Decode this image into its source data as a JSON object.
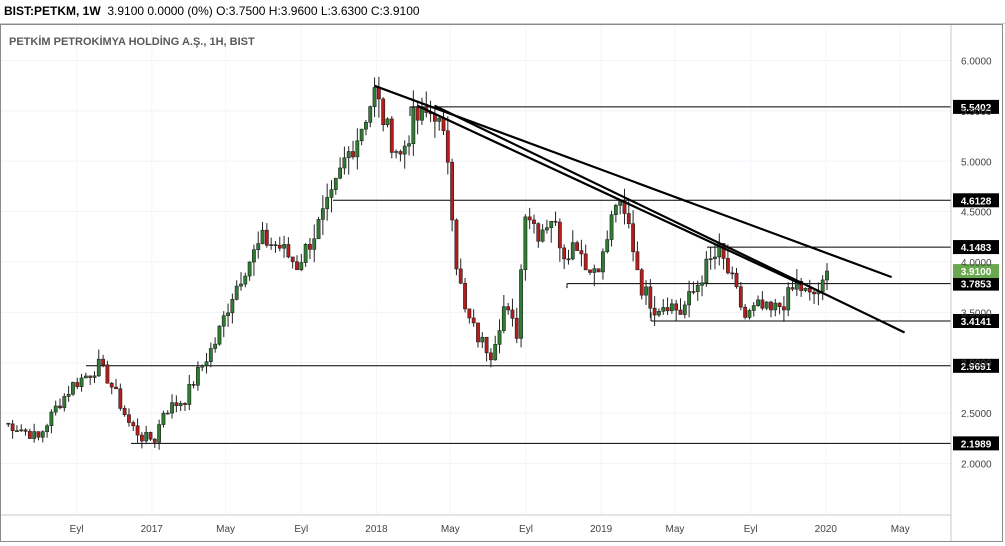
{
  "header": {
    "symbol": "BIST:PETKM, 1W",
    "quote": "3.9100 0.0000 (0%) O:3.7500 H:3.9600 L:3.6300 C:3.9100"
  },
  "chart_data": {
    "type": "candlestick",
    "title": "PETKİM PETROKİMYA HOLDİNG A.Ş., 1H, BIST",
    "x_tick_labels": [
      "Eyl",
      "2017",
      "May",
      "Eyl",
      "2018",
      "May",
      "Eyl",
      "2019",
      "May",
      "Eyl",
      "2020",
      "May"
    ],
    "y_tick_labels": [
      "6.0000",
      "5.5000",
      "5.0000",
      "4.5000",
      "4.0000",
      "3.5000",
      "3.0000",
      "2.5000",
      "2.0000"
    ],
    "ylim": [
      1.6,
      6.3
    ],
    "last_price": 3.91,
    "last_price_color": "#6aa84f",
    "up_color": "#2e7d32",
    "down_color": "#b71c1c",
    "horizontal_levels": [
      5.5402,
      4.6128,
      4.1483,
      3.7853,
      3.4141,
      2.9691,
      2.1989
    ],
    "horizontal_level_labels": [
      "5.5402",
      "4.6128",
      "4.1483",
      "3.7853",
      "3.4141",
      "2.9691",
      "2.1989"
    ],
    "last_price_label": "3.9100",
    "weekly_close_anchors": [
      [
        "2016-05-06",
        2.4
      ],
      [
        "2016-06-03",
        2.34
      ],
      [
        "2016-07-01",
        2.25
      ],
      [
        "2016-07-29",
        2.55
      ],
      [
        "2016-08-26",
        2.78
      ],
      [
        "2016-09-23",
        2.9
      ],
      [
        "2016-10-07",
        2.97
      ],
      [
        "2016-10-21",
        2.85
      ],
      [
        "2016-11-04",
        2.68
      ],
      [
        "2016-11-25",
        2.4
      ],
      [
        "2016-12-16",
        2.26
      ],
      [
        "2017-01-06",
        2.24
      ],
      [
        "2017-01-20",
        2.52
      ],
      [
        "2017-02-24",
        2.64
      ],
      [
        "2017-03-17",
        2.9
      ],
      [
        "2017-04-14",
        3.2
      ],
      [
        "2017-05-12",
        3.68
      ],
      [
        "2017-06-02",
        3.95
      ],
      [
        "2017-06-30",
        4.22
      ],
      [
        "2017-07-28",
        4.15
      ],
      [
        "2017-08-25",
        3.97
      ],
      [
        "2017-09-22",
        4.28
      ],
      [
        "2017-10-20",
        4.62
      ],
      [
        "2017-11-10",
        5.0
      ],
      [
        "2017-12-01",
        5.25
      ],
      [
        "2017-12-29",
        5.68
      ],
      [
        "2018-01-19",
        5.3
      ],
      [
        "2018-02-09",
        5.05
      ],
      [
        "2018-03-02",
        5.4
      ],
      [
        "2018-04-06",
        5.5
      ],
      [
        "2018-04-27",
        5.05
      ],
      [
        "2018-05-11",
        4.0
      ],
      [
        "2018-05-25",
        3.5
      ],
      [
        "2018-06-15",
        3.25
      ],
      [
        "2018-07-06",
        3.1
      ],
      [
        "2018-07-27",
        3.55
      ],
      [
        "2018-08-17",
        3.3
      ],
      [
        "2018-08-31",
        4.55
      ],
      [
        "2018-09-21",
        4.3
      ],
      [
        "2018-10-12",
        4.45
      ],
      [
        "2018-11-02",
        4.1
      ],
      [
        "2018-11-23",
        4.2
      ],
      [
        "2018-12-14",
        3.9
      ],
      [
        "2019-01-04",
        4.05
      ],
      [
        "2019-01-25",
        4.6
      ],
      [
        "2019-02-15",
        4.35
      ],
      [
        "2019-03-08",
        3.75
      ],
      [
        "2019-03-29",
        3.55
      ],
      [
        "2019-04-19",
        3.6
      ],
      [
        "2019-05-10",
        3.5
      ],
      [
        "2019-05-31",
        3.7
      ],
      [
        "2019-06-21",
        3.95
      ],
      [
        "2019-07-12",
        4.1
      ],
      [
        "2019-08-02",
        3.8
      ],
      [
        "2019-08-23",
        3.45
      ],
      [
        "2019-09-13",
        3.55
      ],
      [
        "2019-10-04",
        3.5
      ],
      [
        "2019-10-25",
        3.6
      ],
      [
        "2019-11-15",
        3.78
      ],
      [
        "2019-12-06",
        3.65
      ],
      [
        "2019-12-27",
        3.75
      ],
      [
        "2020-01-03",
        3.91
      ]
    ],
    "trendlines": [
      {
        "from": [
          "2017-12-29",
          5.75
        ],
        "to": [
          "2020-04-17",
          3.85
        ]
      },
      {
        "from": [
          "2018-04-06",
          5.55
        ],
        "to": [
          "2020-05-08",
          3.3
        ]
      },
      {
        "from": [
          "2018-03-09",
          5.55
        ],
        "to": [
          "2019-11-22",
          3.78
        ]
      }
    ]
  }
}
